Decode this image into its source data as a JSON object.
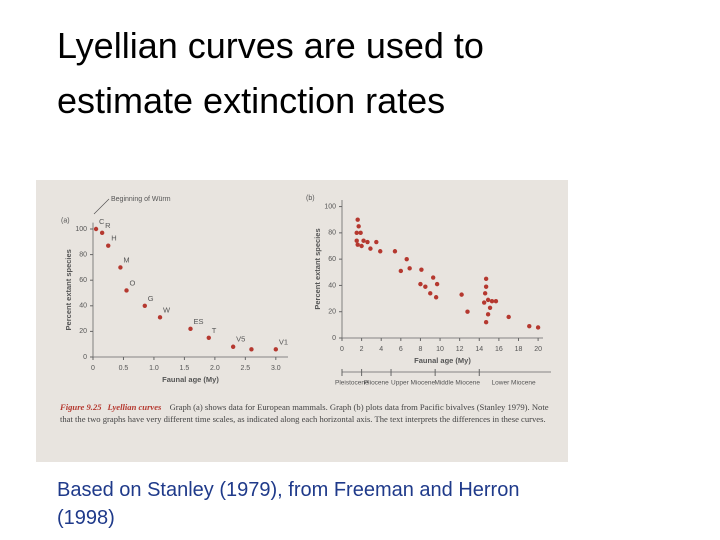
{
  "title": "Lyellian curves are used to estimate extinction rates",
  "chart_data": [
    {
      "type": "scatter",
      "label": "(a)",
      "annotation": "Beginning of Würm",
      "ylabel": "Percent extant species",
      "xlabel": "Faunal age (My)",
      "x": [
        0.05,
        0.15,
        0.25,
        0.45,
        0.55,
        0.85,
        1.1,
        1.6,
        1.9,
        2.3,
        2.6,
        3.0
      ],
      "values": [
        100,
        97,
        87,
        70,
        52,
        40,
        31,
        22,
        15,
        8,
        6,
        6
      ],
      "point_labels": [
        "C",
        "R",
        "H",
        "M",
        "O",
        "G",
        "W",
        "ES",
        "T",
        "V5",
        null,
        "V1"
      ],
      "color": "#b5382f",
      "xlim": [
        0,
        3.2
      ],
      "ylim": [
        0,
        105
      ],
      "xticks": [
        0,
        0.5,
        {
          "value": 1,
          "label": "1.0"
        },
        1.5,
        {
          "value": 2,
          "label": "2.0"
        },
        2.5,
        {
          "value": 3,
          "label": "3.0"
        }
      ],
      "yticks": [
        0,
        20,
        40,
        60,
        80,
        100
      ]
    },
    {
      "type": "scatter",
      "label": "(b)",
      "ylabel": "Percent extant species",
      "xlabel": "Faunal age (My)",
      "x": [
        1.6,
        1.7,
        1.5,
        1.9,
        1.5,
        1.6,
        2.2,
        2.0,
        2.6,
        2.9,
        3.5,
        3.9,
        5.4,
        6.6,
        6.0,
        6.9,
        8.1,
        8.0,
        8.5,
        9.0,
        9.6,
        9.3,
        9.7,
        12.2,
        12.8,
        14.7,
        14.7,
        14.6,
        14.5,
        14.9,
        15.3,
        15.1,
        14.9,
        14.7,
        15.7,
        17.0,
        19.1,
        20.0
      ],
      "values": [
        90,
        85,
        80,
        80,
        74,
        71,
        74,
        70,
        73,
        68,
        73,
        66,
        66,
        60,
        51,
        53,
        52,
        41,
        39,
        34,
        31,
        46,
        41,
        33,
        20,
        45,
        39,
        34,
        27,
        29,
        28,
        23,
        18,
        12,
        28,
        16,
        9,
        8
      ],
      "color": "#b5382f",
      "xlim": [
        0,
        20.5
      ],
      "ylim": [
        0,
        105
      ],
      "xticks": [
        0,
        2,
        4,
        6,
        8,
        10,
        12,
        14,
        16,
        18,
        20
      ],
      "yticks": [
        0,
        20,
        40,
        60,
        80,
        100
      ],
      "epochs": [
        {
          "name": "Pleistocene",
          "start": 0,
          "end": 2
        },
        {
          "name": "Pliocene",
          "start": 2,
          "end": 5
        },
        {
          "name": "Upper Miocene",
          "start": 5,
          "end": 9.5
        },
        {
          "name": "Middle Miocene",
          "start": 9.5,
          "end": 14
        },
        {
          "name": "Lower Miocene",
          "start": 14,
          "end": 21
        }
      ]
    }
  ],
  "figure_caption": {
    "label": "Figure 9.25",
    "heading": "Lyellian curves",
    "text": "Graph (a) shows data for European mammals. Graph (b) plots data from Pacific bivalves (Stanley 1979). Note that the two graphs have very different time scales, as indicated along each horizontal axis. The text interprets the differences in these curves."
  },
  "source": "Based on Stanley (1979), from Freeman and Herron (1998)"
}
